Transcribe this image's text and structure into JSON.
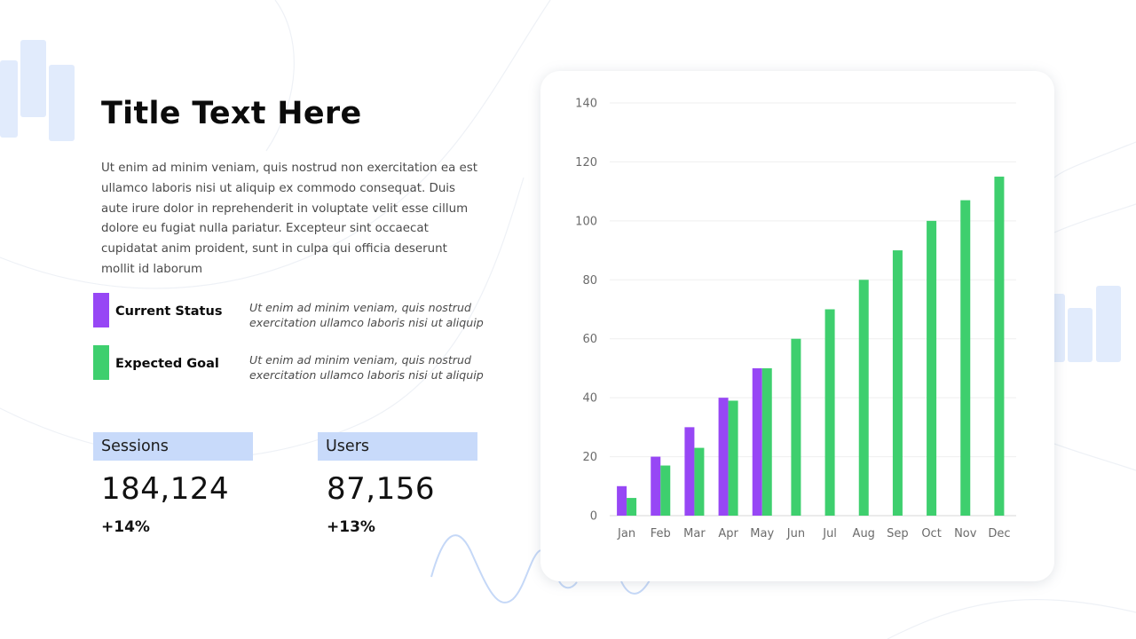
{
  "slide": {
    "title": "Title Text Here",
    "body": "Ut enim ad minim veniam, quis nostrud non exercitation ea est ullamco laboris nisi ut aliquip ex commodo consequat. Duis aute irure dolor in reprehenderit in voluptate velit esse cillum dolore eu fugiat nulla pariatur. Excepteur sint occaecat cupidatat anim proident, sunt in culpa qui officia deserunt mollit id laborum"
  },
  "legend": [
    {
      "name": "Current Status",
      "description": "Ut enim ad minim veniam, quis nostrud exercitation ullamco laboris nisi ut aliquip",
      "color": "#9747f5"
    },
    {
      "name": "Expected Goal",
      "description": "Ut enim ad minim veniam, quis nostrud exercitation ullamco laboris nisi ut aliquip",
      "color": "#3ecf6e"
    }
  ],
  "stats": [
    {
      "label": "Sessions",
      "value": "184,124",
      "change": "+14%"
    },
    {
      "label": "Users",
      "value": "87,156",
      "change": "+13%"
    }
  ],
  "colors": {
    "accent_label_bg": "#c8dafa",
    "decoration": "#e1ebfc"
  },
  "chart_data": {
    "type": "bar",
    "categories": [
      "Jan",
      "Feb",
      "Mar",
      "Apr",
      "May",
      "Jun",
      "Jul",
      "Aug",
      "Sep",
      "Oct",
      "Nov",
      "Dec"
    ],
    "series": [
      {
        "name": "Current Status",
        "color": "#9747f5",
        "values": [
          10,
          20,
          30,
          40,
          50,
          null,
          null,
          null,
          null,
          null,
          null,
          null
        ]
      },
      {
        "name": "Expected Goal",
        "color": "#3ecf6e",
        "values": [
          6,
          17,
          23,
          39,
          50,
          60,
          70,
          80,
          90,
          100,
          107,
          115
        ]
      }
    ],
    "ylim": [
      0,
      140
    ],
    "yticks": [
      0,
      20,
      40,
      60,
      80,
      100,
      120,
      140
    ],
    "grid": true,
    "legend": "none"
  }
}
